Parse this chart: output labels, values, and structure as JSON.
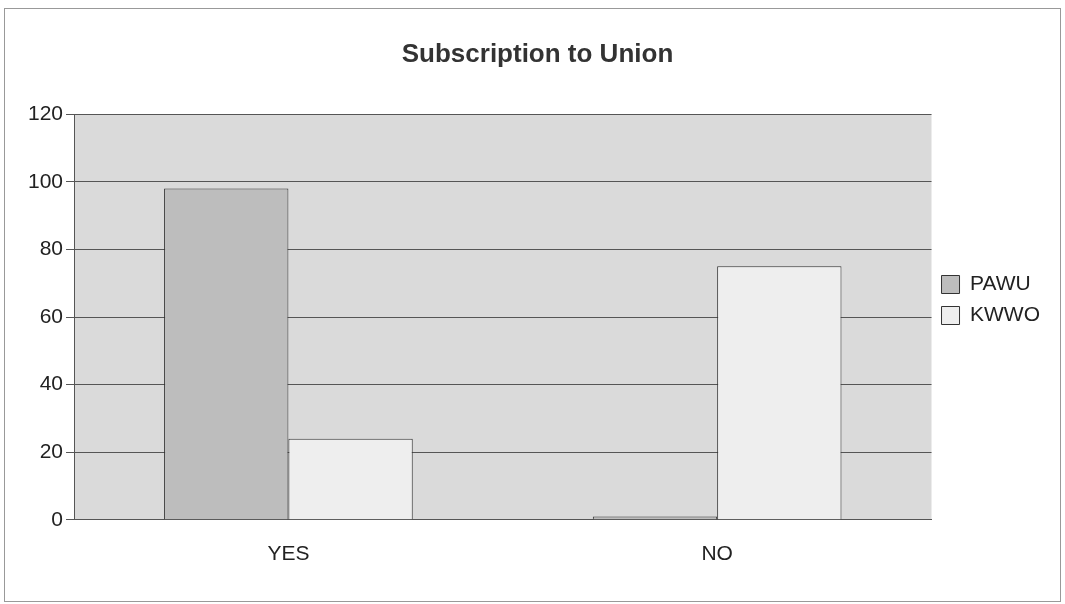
{
  "chart_data": {
    "type": "bar",
    "title": "Subscription to Union",
    "categories": [
      "YES",
      "NO"
    ],
    "series": [
      {
        "name": "PAWU",
        "color": "#bdbdbd",
        "values": [
          98,
          1
        ]
      },
      {
        "name": "KWWO",
        "color": "#eeeeee",
        "values": [
          24,
          75
        ]
      }
    ],
    "ylim": [
      0,
      120
    ],
    "yticks": [
      0,
      20,
      40,
      60,
      80,
      100,
      120
    ],
    "grid": "y",
    "legend": "right"
  }
}
